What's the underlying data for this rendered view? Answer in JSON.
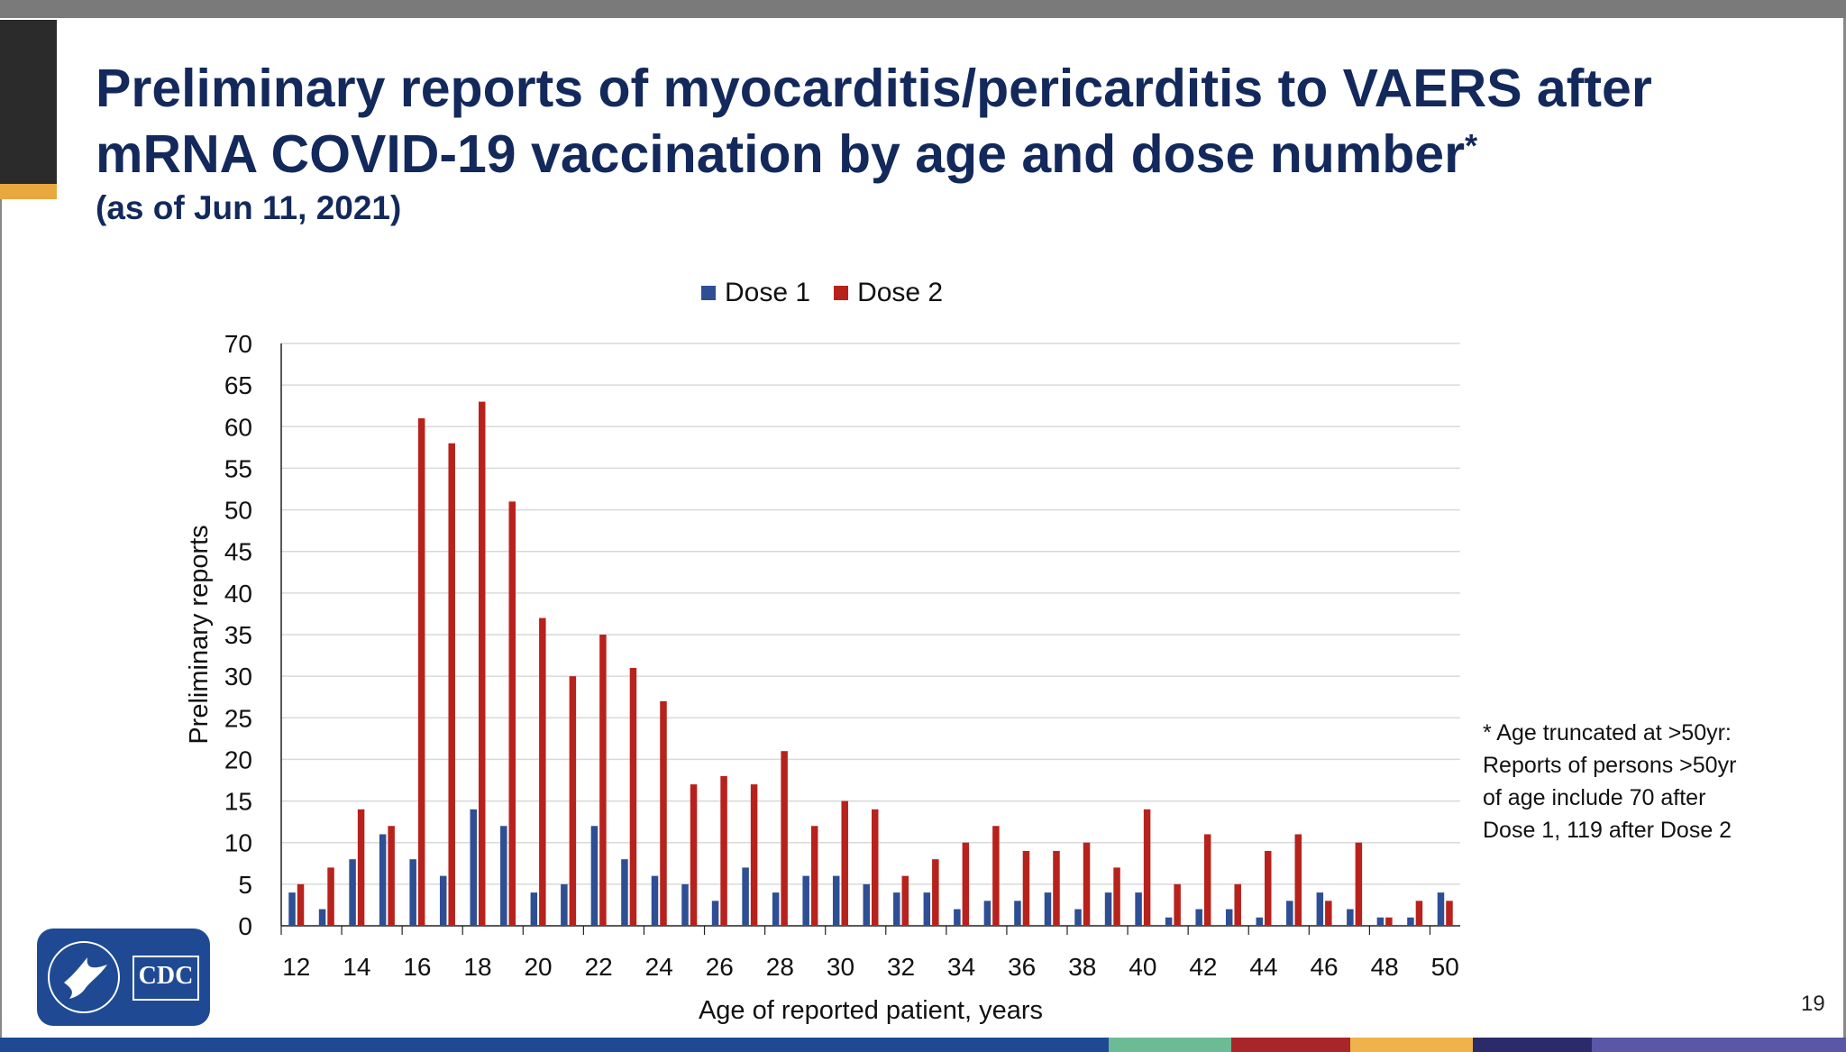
{
  "slide": {
    "title": "Preliminary reports of myocarditis/pericarditis to VAERS after mRNA COVID-19 vaccination by age and dose number",
    "title_mark": "*",
    "subtitle": "(as of Jun 11, 2021)",
    "footnote": "* Age truncated at >50yr:\nReports of persons >50yr\nof age include 70 after\nDose 1, 119 after Dose 2",
    "page_number": "19",
    "logo_text": "CDC",
    "colors": {
      "title": "#13295c",
      "dose1": "#2e4f94",
      "dose2": "#b8221c"
    },
    "bottom_bar_colors": [
      "#1f4a93",
      "#6dbb95",
      "#a8262a",
      "#f0b24a",
      "#2b2a6b",
      "#5a57a6"
    ]
  },
  "chart_data": {
    "type": "bar",
    "title": "",
    "xlabel": "Age of reported patient, years",
    "ylabel": "Preliminary reports",
    "ylim": [
      0,
      70
    ],
    "yticks": [
      0,
      5,
      10,
      15,
      20,
      25,
      30,
      35,
      40,
      45,
      50,
      55,
      60,
      65,
      70
    ],
    "grid": true,
    "legend": "top-center",
    "categories": [
      12,
      13,
      14,
      15,
      16,
      17,
      18,
      19,
      20,
      21,
      22,
      23,
      24,
      25,
      26,
      27,
      28,
      29,
      30,
      31,
      32,
      33,
      34,
      35,
      36,
      37,
      38,
      39,
      40,
      41,
      42,
      43,
      44,
      45,
      46,
      47,
      48,
      49,
      50
    ],
    "xtick_labels": [
      "12",
      "14",
      "16",
      "18",
      "20",
      "22",
      "24",
      "26",
      "28",
      "30",
      "32",
      "34",
      "36",
      "38",
      "40",
      "42",
      "44",
      "46",
      "48",
      "50"
    ],
    "series": [
      {
        "name": "Dose 1",
        "color": "#2e4f94",
        "values": [
          4,
          2,
          8,
          11,
          8,
          6,
          14,
          12,
          4,
          5,
          12,
          8,
          6,
          5,
          3,
          7,
          4,
          6,
          6,
          5,
          4,
          4,
          2,
          3,
          3,
          4,
          2,
          4,
          4,
          1,
          2,
          2,
          1,
          3,
          4,
          2,
          1,
          1,
          4
        ]
      },
      {
        "name": "Dose 2",
        "color": "#b8221c",
        "values": [
          5,
          7,
          14,
          12,
          61,
          58,
          63,
          51,
          37,
          30,
          35,
          31,
          27,
          17,
          18,
          17,
          21,
          12,
          15,
          14,
          6,
          8,
          10,
          12,
          9,
          9,
          10,
          7,
          14,
          5,
          11,
          5,
          9,
          11,
          3,
          10,
          1,
          3,
          3
        ]
      }
    ]
  }
}
